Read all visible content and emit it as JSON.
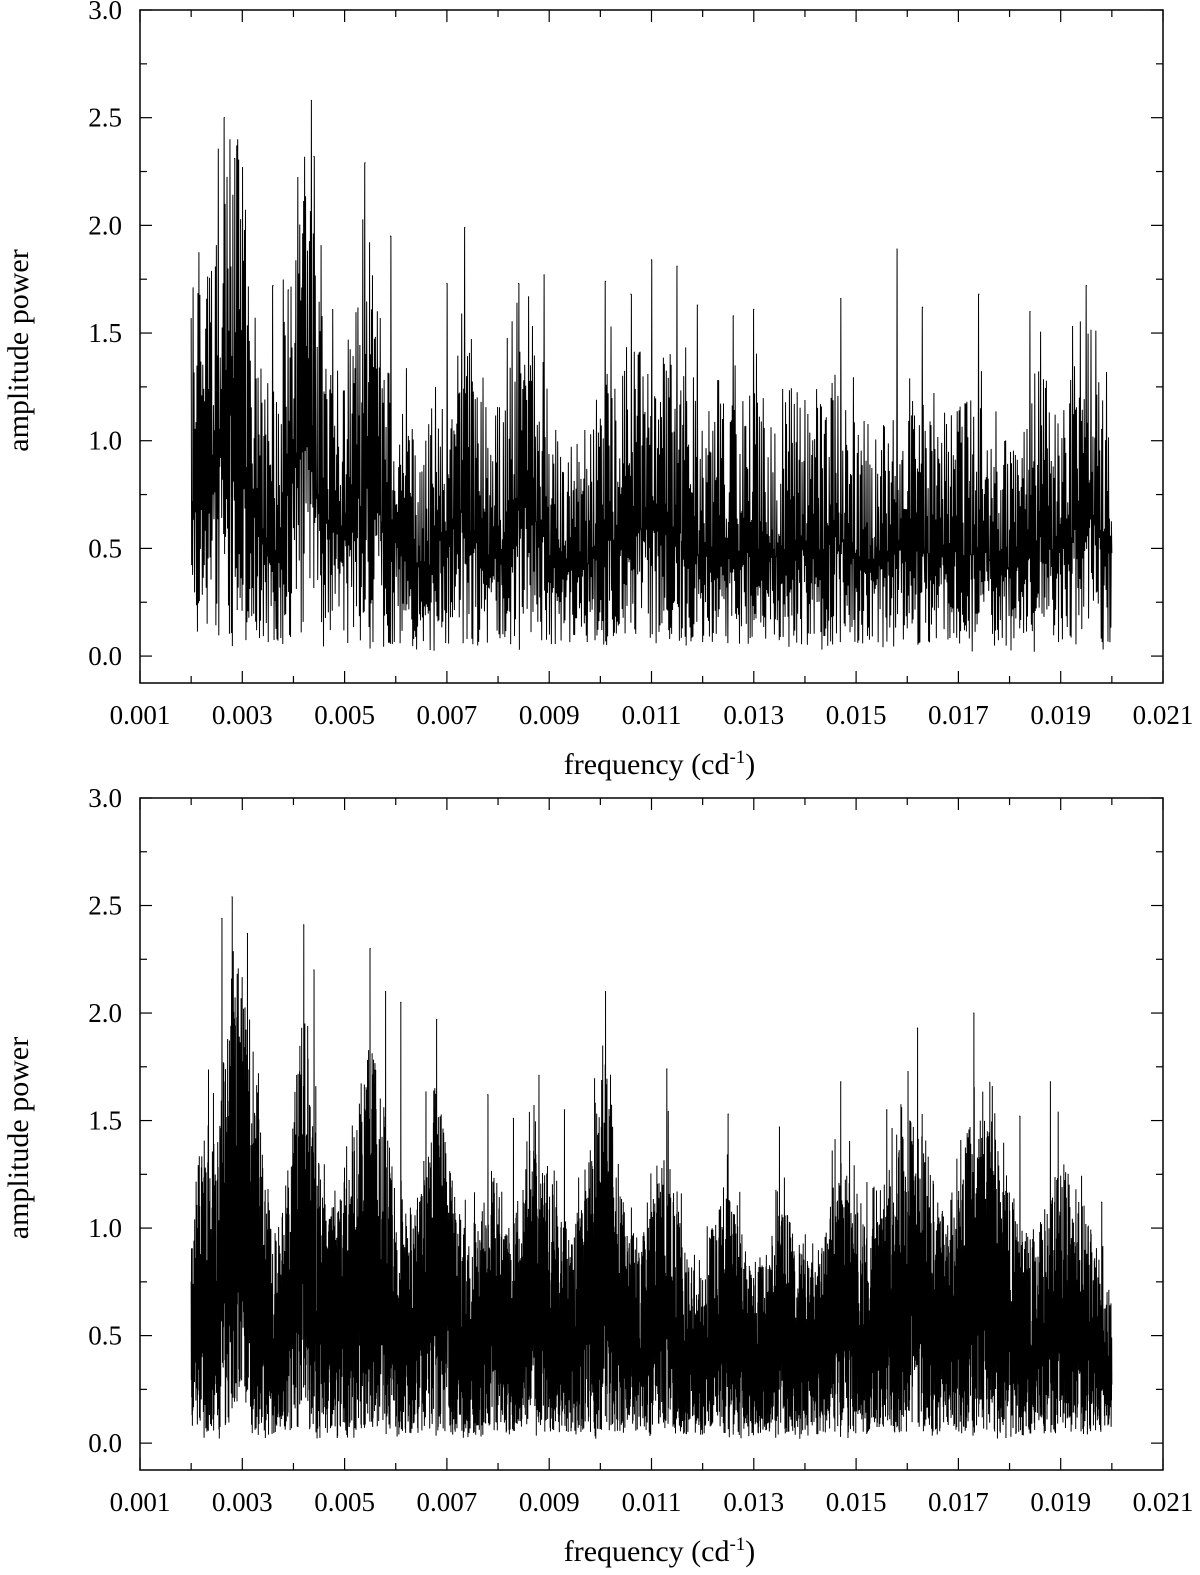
{
  "chart_data": [
    {
      "type": "line",
      "panel": "top",
      "title": "",
      "xlabel": "frequency (cd",
      "xlabel_sup": "-1",
      "xlabel_close": ")",
      "ylabel": "amplitude power",
      "xlim": [
        0.001,
        0.021
      ],
      "ylim": [
        -0.125,
        3.0
      ],
      "xticks": [
        0.001,
        0.003,
        0.005,
        0.007,
        0.009,
        0.011,
        0.013,
        0.015,
        0.017,
        0.019,
        0.021
      ],
      "xtick_labels": [
        "0.001",
        "0.003",
        "0.005",
        "0.007",
        "0.009",
        "0.011",
        "0.013",
        "0.015",
        "0.017",
        "0.019",
        "0.021"
      ],
      "yticks": [
        0.0,
        0.5,
        1.0,
        1.5,
        2.0,
        2.5,
        3.0
      ],
      "ytick_labels": [
        "0.0",
        "0.5",
        "1.0",
        "1.5",
        "2.0",
        "2.5",
        "3.0"
      ],
      "grid": false,
      "color": "#000000",
      "series": [
        {
          "x_range": [
            0.002,
            0.02
          ],
          "samples": 1900,
          "peaks": [
            {
              "x": 0.00265,
              "y": 2.5
            },
            {
              "x": 0.0029,
              "y": 2.37
            },
            {
              "x": 0.00285,
              "y": 2.31
            },
            {
              "x": 0.00435,
              "y": 2.58
            },
            {
              "x": 0.0044,
              "y": 2.32
            },
            {
              "x": 0.0054,
              "y": 2.29
            },
            {
              "x": 0.0036,
              "y": 1.72
            },
            {
              "x": 0.0039,
              "y": 1.7
            },
            {
              "x": 0.0059,
              "y": 1.95
            },
            {
              "x": 0.00735,
              "y": 1.99
            },
            {
              "x": 0.007,
              "y": 1.73
            },
            {
              "x": 0.0084,
              "y": 1.73
            },
            {
              "x": 0.0089,
              "y": 1.77
            },
            {
              "x": 0.0101,
              "y": 1.74
            },
            {
              "x": 0.0106,
              "y": 1.68
            },
            {
              "x": 0.011,
              "y": 1.84
            },
            {
              "x": 0.0115,
              "y": 1.81
            },
            {
              "x": 0.0119,
              "y": 1.63
            },
            {
              "x": 0.0126,
              "y": 1.58
            },
            {
              "x": 0.013,
              "y": 1.61
            },
            {
              "x": 0.0147,
              "y": 1.66
            },
            {
              "x": 0.0158,
              "y": 1.89
            },
            {
              "x": 0.0163,
              "y": 1.62
            },
            {
              "x": 0.0174,
              "y": 1.68
            },
            {
              "x": 0.0184,
              "y": 1.6
            },
            {
              "x": 0.0195,
              "y": 1.72
            }
          ],
          "envelope": [
            [
              0.002,
              1.05
            ],
            [
              0.0025,
              1.45
            ],
            [
              0.00275,
              2.05
            ],
            [
              0.0031,
              1.4
            ],
            [
              0.0034,
              0.95
            ],
            [
              0.0036,
              0.8
            ],
            [
              0.004,
              1.5
            ],
            [
              0.0043,
              1.65
            ],
            [
              0.0046,
              1.05
            ],
            [
              0.005,
              0.95
            ],
            [
              0.0054,
              1.35
            ],
            [
              0.0058,
              1.0
            ],
            [
              0.0062,
              0.8
            ],
            [
              0.0066,
              0.7
            ],
            [
              0.007,
              1.0
            ],
            [
              0.0073,
              1.15
            ],
            [
              0.0077,
              0.85
            ],
            [
              0.0081,
              0.8
            ],
            [
              0.0085,
              1.25
            ],
            [
              0.0088,
              1.0
            ],
            [
              0.0093,
              0.65
            ],
            [
              0.0097,
              0.75
            ],
            [
              0.0101,
              0.9
            ],
            [
              0.0106,
              1.05
            ],
            [
              0.011,
              1.0
            ],
            [
              0.0114,
              1.05
            ],
            [
              0.0118,
              0.85
            ],
            [
              0.0122,
              0.8
            ],
            [
              0.0126,
              0.85
            ],
            [
              0.013,
              0.85
            ],
            [
              0.0134,
              0.8
            ],
            [
              0.0138,
              0.85
            ],
            [
              0.0142,
              0.8
            ],
            [
              0.0146,
              0.95
            ],
            [
              0.015,
              0.8
            ],
            [
              0.0155,
              0.75
            ],
            [
              0.0158,
              0.85
            ],
            [
              0.0162,
              0.85
            ],
            [
              0.0166,
              0.75
            ],
            [
              0.017,
              0.85
            ],
            [
              0.0174,
              0.85
            ],
            [
              0.0178,
              0.7
            ],
            [
              0.0182,
              0.75
            ],
            [
              0.0186,
              0.95
            ],
            [
              0.019,
              0.85
            ],
            [
              0.0194,
              1.1
            ],
            [
              0.0197,
              1.05
            ],
            [
              0.02,
              0.85
            ]
          ]
        }
      ]
    },
    {
      "type": "line",
      "panel": "bottom",
      "title": "",
      "xlabel": "frequency (cd",
      "xlabel_sup": "-1",
      "xlabel_close": ")",
      "ylabel": "amplitude power",
      "xlim": [
        0.001,
        0.021
      ],
      "ylim": [
        -0.125,
        3.0
      ],
      "xticks": [
        0.001,
        0.003,
        0.005,
        0.007,
        0.009,
        0.011,
        0.013,
        0.015,
        0.017,
        0.019,
        0.021
      ],
      "xtick_labels": [
        "0.001",
        "0.003",
        "0.005",
        "0.007",
        "0.009",
        "0.011",
        "0.013",
        "0.015",
        "0.017",
        "0.019",
        "0.021"
      ],
      "yticks": [
        0.0,
        0.5,
        1.0,
        1.5,
        2.0,
        2.5,
        3.0
      ],
      "ytick_labels": [
        "0.0",
        "0.5",
        "1.0",
        "1.5",
        "2.0",
        "2.5",
        "3.0"
      ],
      "grid": false,
      "color": "#000000",
      "series": [
        {
          "x_range": [
            0.002,
            0.02
          ],
          "samples": 5200,
          "peaks": [
            {
              "x": 0.0028,
              "y": 2.54
            },
            {
              "x": 0.0026,
              "y": 2.44
            },
            {
              "x": 0.0031,
              "y": 2.37
            },
            {
              "x": 0.0042,
              "y": 2.41
            },
            {
              "x": 0.0044,
              "y": 2.2
            },
            {
              "x": 0.0055,
              "y": 2.3
            },
            {
              "x": 0.0058,
              "y": 2.1
            },
            {
              "x": 0.0061,
              "y": 2.05
            },
            {
              "x": 0.0068,
              "y": 1.97
            },
            {
              "x": 0.0078,
              "y": 1.62
            },
            {
              "x": 0.0083,
              "y": 1.51
            },
            {
              "x": 0.0088,
              "y": 1.71
            },
            {
              "x": 0.0093,
              "y": 1.55
            },
            {
              "x": 0.0101,
              "y": 2.1
            },
            {
              "x": 0.0113,
              "y": 1.74
            },
            {
              "x": 0.0125,
              "y": 1.53
            },
            {
              "x": 0.0135,
              "y": 1.47
            },
            {
              "x": 0.0147,
              "y": 1.68
            },
            {
              "x": 0.0156,
              "y": 1.55
            },
            {
              "x": 0.0162,
              "y": 1.93
            },
            {
              "x": 0.0173,
              "y": 2.0
            },
            {
              "x": 0.0182,
              "y": 1.52
            },
            {
              "x": 0.0188,
              "y": 1.68
            },
            {
              "x": 0.0198,
              "y": 1.12
            }
          ],
          "envelope": [
            [
              0.002,
              0.7
            ],
            [
              0.0021,
              0.9
            ],
            [
              0.0023,
              1.05
            ],
            [
              0.0025,
              0.95
            ],
            [
              0.0028,
              1.6
            ],
            [
              0.0031,
              1.45
            ],
            [
              0.0034,
              0.95
            ],
            [
              0.0036,
              0.65
            ],
            [
              0.0038,
              0.8
            ],
            [
              0.0042,
              1.4
            ],
            [
              0.0045,
              0.9
            ],
            [
              0.0048,
              0.75
            ],
            [
              0.0055,
              1.3
            ],
            [
              0.0058,
              1.05
            ],
            [
              0.006,
              0.8
            ],
            [
              0.0064,
              0.75
            ],
            [
              0.0068,
              1.2
            ],
            [
              0.0072,
              0.75
            ],
            [
              0.0076,
              0.7
            ],
            [
              0.0079,
              0.9
            ],
            [
              0.0082,
              0.7
            ],
            [
              0.0088,
              1.0
            ],
            [
              0.0092,
              0.75
            ],
            [
              0.0096,
              0.75
            ],
            [
              0.0101,
              1.25
            ],
            [
              0.0105,
              0.7
            ],
            [
              0.0108,
              0.65
            ],
            [
              0.0113,
              0.95
            ],
            [
              0.0117,
              0.6
            ],
            [
              0.012,
              0.6
            ],
            [
              0.0125,
              0.85
            ],
            [
              0.0129,
              0.6
            ],
            [
              0.0132,
              0.6
            ],
            [
              0.0135,
              0.8
            ],
            [
              0.0139,
              0.65
            ],
            [
              0.0143,
              0.65
            ],
            [
              0.0147,
              0.95
            ],
            [
              0.0151,
              0.7
            ],
            [
              0.0155,
              0.75
            ],
            [
              0.0162,
              1.15
            ],
            [
              0.0166,
              0.75
            ],
            [
              0.0169,
              0.7
            ],
            [
              0.0173,
              1.15
            ],
            [
              0.0178,
              0.95
            ],
            [
              0.0182,
              0.7
            ],
            [
              0.0185,
              0.65
            ],
            [
              0.019,
              0.95
            ],
            [
              0.0195,
              0.75
            ],
            [
              0.0198,
              0.6
            ],
            [
              0.02,
              0.5
            ]
          ]
        }
      ]
    }
  ]
}
